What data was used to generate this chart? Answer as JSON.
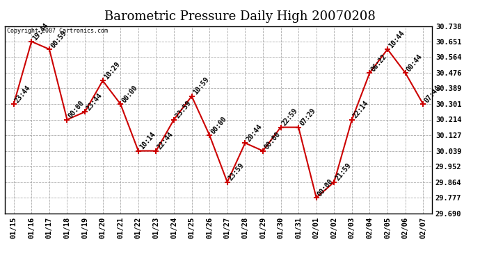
{
  "title": "Barometric Pressure Daily High 20070208",
  "copyright": "Copyright 2007 Cartronics.com",
  "dates": [
    "01/15",
    "01/16",
    "01/17",
    "01/18",
    "01/19",
    "01/20",
    "01/21",
    "01/22",
    "01/23",
    "01/24",
    "01/25",
    "01/26",
    "01/27",
    "01/28",
    "01/29",
    "01/30",
    "01/31",
    "02/01",
    "02/02",
    "02/03",
    "02/04",
    "02/05",
    "02/06",
    "02/07"
  ],
  "values": [
    30.301,
    30.651,
    30.608,
    30.214,
    30.257,
    30.432,
    30.301,
    30.039,
    30.039,
    30.214,
    30.345,
    30.127,
    29.864,
    30.083,
    30.039,
    30.171,
    30.171,
    29.777,
    29.864,
    30.214,
    30.476,
    30.608,
    30.476,
    30.301
  ],
  "times": [
    "23:44",
    "19:44",
    "00:59",
    "00:00",
    "23:44",
    "10:29",
    "00:00",
    "10:14",
    "22:44",
    "23:59",
    "10:59",
    "00:00",
    "23:59",
    "20:44",
    "00:00",
    "22:59",
    "07:29",
    "00:00",
    "21:59",
    "22:14",
    "06:22",
    "10:44",
    "00:44",
    "07:44"
  ],
  "line_color": "#cc0000",
  "marker_color": "#cc0000",
  "background_color": "#ffffff",
  "grid_color": "#aaaaaa",
  "title_fontsize": 13,
  "label_fontsize": 7,
  "tick_fontsize": 7.5,
  "ylim": [
    29.69,
    30.738
  ],
  "yticks": [
    29.69,
    29.777,
    29.864,
    29.952,
    30.039,
    30.127,
    30.214,
    30.301,
    30.389,
    30.476,
    30.564,
    30.651,
    30.738
  ]
}
